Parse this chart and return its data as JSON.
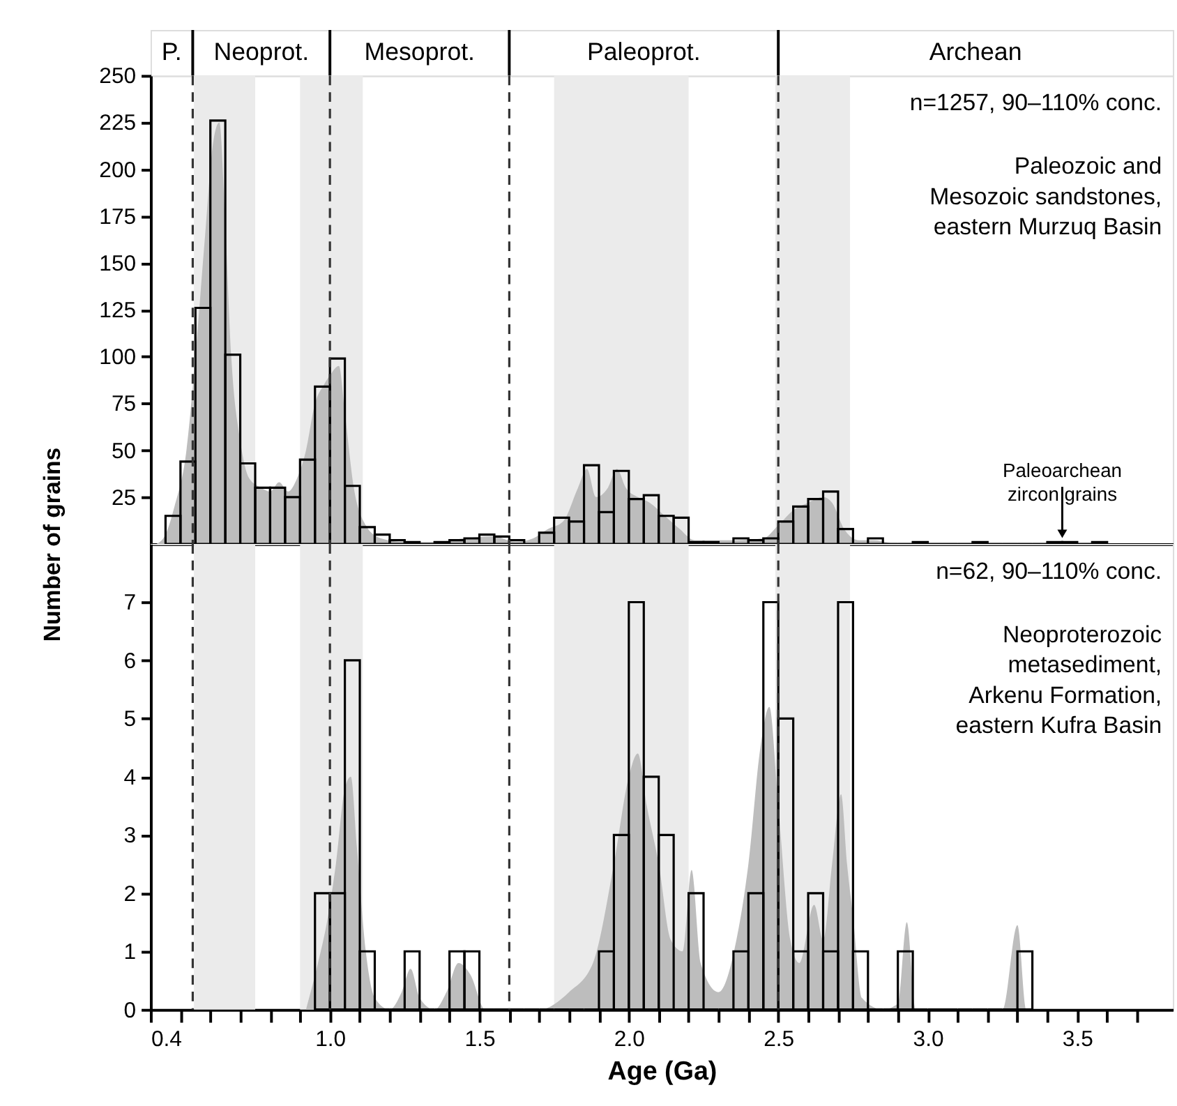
{
  "chart_data": [
    {
      "type": "histogram",
      "ylabel": "Number of grains",
      "xlim": [
        0.4,
        3.82
      ],
      "ylim": [
        0,
        250
      ],
      "yticks": [
        25,
        50,
        75,
        100,
        125,
        150,
        175,
        200,
        225,
        250
      ],
      "tick_labels": "y",
      "series": [
        {
          "type": "area",
          "color": "#bdbdbd",
          "x": [
            0.42,
            0.45,
            0.48,
            0.52,
            0.55,
            0.58,
            0.61,
            0.63,
            0.65,
            0.67,
            0.7,
            0.73,
            0.77,
            0.8,
            0.83,
            0.86,
            0.89,
            0.92,
            0.95,
            0.98,
            1.0,
            1.03,
            1.05,
            1.08,
            1.12,
            1.17,
            1.25,
            1.35,
            1.45,
            1.55,
            1.62,
            1.68,
            1.73,
            1.78,
            1.83,
            1.86,
            1.89,
            1.93,
            1.96,
            1.99,
            2.03,
            2.07,
            2.12,
            2.17,
            2.22,
            2.35,
            2.45,
            2.5,
            2.55,
            2.6,
            2.65,
            2.68,
            2.72,
            2.77,
            2.82,
            2.9,
            3.6
          ],
          "values": [
            0,
            5,
            20,
            50,
            100,
            160,
            215,
            225,
            170,
            100,
            55,
            35,
            30,
            28,
            33,
            28,
            35,
            50,
            75,
            85,
            90,
            95,
            70,
            30,
            10,
            3,
            1,
            1,
            3,
            4,
            1,
            3,
            8,
            12,
            30,
            40,
            25,
            30,
            40,
            30,
            25,
            22,
            15,
            8,
            2,
            2,
            3,
            10,
            18,
            22,
            25,
            22,
            8,
            2,
            2,
            0,
            0
          ]
        },
        {
          "type": "histogram",
          "color": "#000000",
          "bins": [
            0.45,
            0.5,
            0.55,
            0.6,
            0.65,
            0.7,
            0.75,
            0.8,
            0.85,
            0.9,
            0.95,
            1.0,
            1.05,
            1.1,
            1.15,
            1.2,
            1.25,
            1.3,
            1.35,
            1.4,
            1.45,
            1.5,
            1.55,
            1.6,
            1.65,
            1.7,
            1.75,
            1.8,
            1.85,
            1.9,
            1.95,
            2.0,
            2.05,
            2.1,
            2.15,
            2.2,
            2.25,
            2.3,
            2.35,
            2.4,
            2.45,
            2.5,
            2.55,
            2.6,
            2.65,
            2.7,
            2.75,
            2.8,
            2.85,
            2.9,
            2.95,
            3.0,
            3.05,
            3.1,
            3.15,
            3.2,
            3.25,
            3.3,
            3.35,
            3.4,
            3.45,
            3.5,
            3.55,
            3.6
          ],
          "values": [
            15,
            44,
            126,
            226,
            101,
            43,
            30,
            30,
            25,
            45,
            84,
            99,
            31,
            9,
            5,
            2,
            1,
            0,
            1,
            2,
            3,
            5,
            4,
            2,
            0,
            6,
            14,
            12,
            42,
            17,
            39,
            24,
            26,
            15,
            14,
            1,
            1,
            0,
            3,
            2,
            3,
            12,
            20,
            24,
            28,
            8,
            0,
            3,
            0,
            0,
            1,
            0,
            0,
            0,
            1,
            0,
            0,
            0,
            0,
            1,
            1,
            0,
            1
          ]
        }
      ],
      "bands": [
        {
          "axis": "x",
          "from": 0.545,
          "to": 0.75,
          "color": "#ebebeb"
        },
        {
          "axis": "x",
          "from": 0.9,
          "to": 1.11,
          "color": "#ebebeb"
        },
        {
          "axis": "x",
          "from": 1.75,
          "to": 2.2,
          "color": "#ebebeb"
        },
        {
          "axis": "x",
          "from": 2.49,
          "to": 2.74,
          "color": "#ebebeb"
        }
      ],
      "ref_lines": [
        {
          "axis": "x",
          "value": 0.541,
          "line_style": "dashed",
          "color": "#333333"
        },
        {
          "axis": "x",
          "value": 1.0,
          "line_style": "dashed",
          "color": "#333333"
        },
        {
          "axis": "x",
          "value": 1.6,
          "line_style": "dashed",
          "color": "#333333"
        },
        {
          "axis": "x",
          "value": 2.5,
          "line_style": "dashed",
          "color": "#333333"
        }
      ],
      "annotations": [
        "P.",
        "Neoprot.",
        "Mesoprot.",
        "Paleoprot.",
        "Archean",
        "n=1257, 90–110% conc.",
        "Paleozoic and\nMesozoic sandstones,\neastern Murzuq Basin",
        {
          "text": "Paleoarchean\nzircon grains",
          "x": 3.45,
          "y": 1
        }
      ]
    },
    {
      "type": "histogram",
      "xlabel": "Age (Ga)",
      "xlim": [
        0.4,
        3.82
      ],
      "ylim": [
        0,
        8
      ],
      "yticks": [
        0,
        1,
        2,
        3,
        4,
        5,
        6,
        7
      ],
      "xticks": [
        0.4,
        {
          "value": 0.5,
          "label": null
        },
        {
          "value": 0.6,
          "label": null
        },
        {
          "value": 0.7,
          "label": null
        },
        {
          "value": 0.8,
          "label": null
        },
        {
          "value": 0.9,
          "label": null
        },
        {
          "value": 1.0,
          "label": "1.0"
        },
        {
          "value": 1.1,
          "label": null
        },
        {
          "value": 1.2,
          "label": null
        },
        {
          "value": 1.3,
          "label": null
        },
        {
          "value": 1.4,
          "label": null
        },
        1.5,
        {
          "value": 1.6,
          "label": null
        },
        {
          "value": 1.7,
          "label": null
        },
        {
          "value": 1.8,
          "label": null
        },
        {
          "value": 1.9,
          "label": null
        },
        {
          "value": 2.0,
          "label": "2.0"
        },
        {
          "value": 2.1,
          "label": null
        },
        {
          "value": 2.2,
          "label": null
        },
        {
          "value": 2.3,
          "label": null
        },
        {
          "value": 2.4,
          "label": null
        },
        2.5,
        {
          "value": 2.6,
          "label": null
        },
        {
          "value": 2.7,
          "label": null
        },
        {
          "value": 2.8,
          "label": null
        },
        {
          "value": 2.9,
          "label": null
        },
        {
          "value": 3.0,
          "label": "3.0"
        },
        {
          "value": 3.1,
          "label": null
        },
        {
          "value": 3.2,
          "label": null
        },
        {
          "value": 3.3,
          "label": null
        },
        {
          "value": 3.4,
          "label": null
        },
        3.5,
        {
          "value": 3.6,
          "label": null
        },
        {
          "value": 3.7,
          "label": null
        }
      ],
      "series": [
        {
          "type": "area",
          "color": "#bdbdbd",
          "x": [
            0.92,
            0.96,
            0.99,
            1.02,
            1.05,
            1.07,
            1.09,
            1.12,
            1.15,
            1.2,
            1.24,
            1.27,
            1.3,
            1.35,
            1.39,
            1.43,
            1.47,
            1.52,
            1.7,
            1.8,
            1.88,
            1.95,
            2.0,
            2.03,
            2.06,
            2.1,
            2.14,
            2.18,
            2.21,
            2.24,
            2.3,
            2.36,
            2.4,
            2.44,
            2.47,
            2.5,
            2.54,
            2.57,
            2.62,
            2.65,
            2.68,
            2.71,
            2.73,
            2.75,
            2.78,
            2.85,
            2.9,
            2.93,
            2.96,
            3.25,
            3.3,
            3.33,
            3.4
          ],
          "values": [
            0,
            0.8,
            1.5,
            2.5,
            3.8,
            4,
            2.8,
            1,
            0.2,
            0,
            0.3,
            0.7,
            0.2,
            0,
            0.3,
            0.8,
            0.6,
            0,
            0,
            0.3,
            0.8,
            2.5,
            4,
            4.4,
            3.5,
            2.5,
            1.2,
            1,
            2.4,
            0.8,
            0.3,
            1.2,
            2.5,
            4.5,
            5.2,
            3.5,
            1.2,
            0.8,
            1.8,
            1.2,
            2.5,
            3.7,
            2.5,
            1.6,
            0.2,
            0,
            0.1,
            1.5,
            0,
            0,
            1.45,
            0,
            0
          ]
        },
        {
          "type": "histogram",
          "color": "#000000",
          "bins": [
            0.95,
            1.0,
            1.05,
            1.1,
            1.15,
            1.2,
            1.25,
            1.3,
            1.35,
            1.4,
            1.45,
            1.5,
            1.55,
            1.6,
            1.65,
            1.7,
            1.75,
            1.8,
            1.85,
            1.9,
            1.95,
            2.0,
            2.05,
            2.1,
            2.15,
            2.2,
            2.25,
            2.3,
            2.35,
            2.4,
            2.45,
            2.5,
            2.55,
            2.6,
            2.65,
            2.7,
            2.75,
            2.8,
            2.85,
            2.9,
            2.95,
            3.0,
            3.05,
            3.1,
            3.15,
            3.2,
            3.25,
            3.3,
            3.35
          ],
          "values": [
            2,
            2,
            6,
            1,
            0,
            0,
            1,
            0,
            0,
            1,
            1,
            0,
            0,
            0,
            0,
            0,
            0,
            0,
            0,
            1,
            3,
            7,
            4,
            3,
            0,
            2,
            0,
            0,
            1,
            2,
            7,
            5,
            1,
            2,
            1,
            7,
            1,
            0,
            0,
            1,
            0,
            0,
            0,
            0,
            0,
            0,
            0,
            1
          ]
        }
      ],
      "bands": [
        {
          "axis": "x",
          "from": 0.545,
          "to": 0.75,
          "color": "#ebebeb"
        },
        {
          "axis": "x",
          "from": 0.9,
          "to": 1.11,
          "color": "#ebebeb"
        },
        {
          "axis": "x",
          "from": 1.75,
          "to": 2.2,
          "color": "#ebebeb"
        },
        {
          "axis": "x",
          "from": 2.49,
          "to": 2.74,
          "color": "#ebebeb"
        }
      ],
      "ref_lines": [
        {
          "axis": "x",
          "value": 0.541,
          "line_style": "dashed",
          "color": "#333333"
        },
        {
          "axis": "x",
          "value": 1.0,
          "line_style": "dashed",
          "color": "#333333"
        },
        {
          "axis": "x",
          "value": 1.6,
          "line_style": "dashed",
          "color": "#333333"
        },
        {
          "axis": "x",
          "value": 2.5,
          "line_style": "dashed",
          "color": "#333333"
        }
      ],
      "annotations": [
        "n=62, 90–110% conc.",
        "Neoproterozoic\nmetasediment,\nArkenu Formation,\neastern Kufra Basin"
      ]
    }
  ]
}
